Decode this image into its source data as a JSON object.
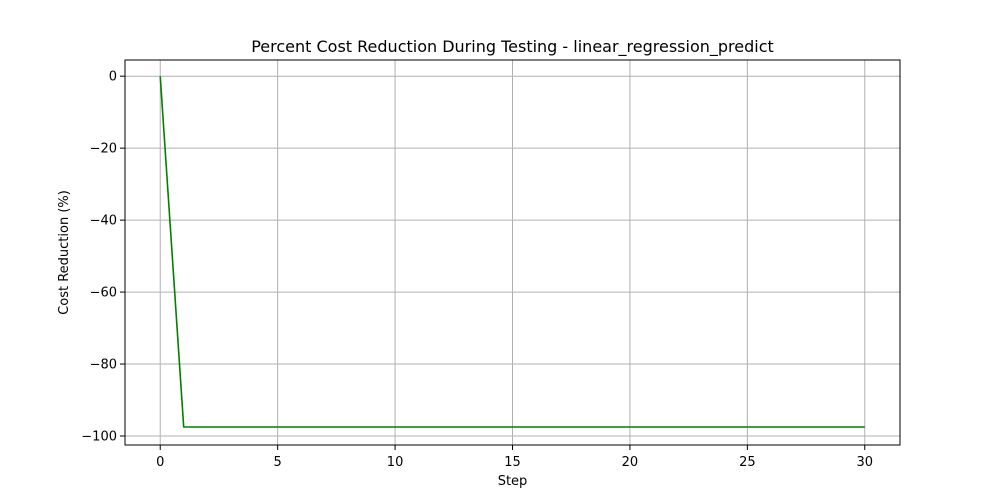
{
  "chart_data": {
    "type": "line",
    "title": "Percent Cost Reduction During Testing - linear_regression_predict",
    "xlabel": "Step",
    "ylabel": "Cost Reduction (%)",
    "xlim": [
      -1.5,
      31.5
    ],
    "ylim": [
      -102.5,
      4.5
    ],
    "x_ticks": [
      0,
      5,
      10,
      15,
      20,
      25,
      30
    ],
    "y_ticks": [
      0,
      -20,
      -40,
      -60,
      -80,
      -100
    ],
    "x_tick_labels": [
      "0",
      "5",
      "10",
      "15",
      "20",
      "25",
      "30"
    ],
    "y_tick_labels": [
      "0",
      "−20",
      "−40",
      "−60",
      "−80",
      "−100"
    ],
    "grid": true,
    "legend": "none",
    "series": [
      {
        "color": "#008000",
        "x": [
          0,
          1,
          2,
          3,
          4,
          5,
          6,
          7,
          8,
          9,
          10,
          11,
          12,
          13,
          14,
          15,
          16,
          17,
          18,
          19,
          20,
          21,
          22,
          23,
          24,
          25,
          26,
          27,
          28,
          29,
          30
        ],
        "y": [
          0,
          -97.5,
          -97.5,
          -97.5,
          -97.5,
          -97.5,
          -97.5,
          -97.5,
          -97.5,
          -97.5,
          -97.5,
          -97.5,
          -97.5,
          -97.5,
          -97.5,
          -97.5,
          -97.5,
          -97.5,
          -97.5,
          -97.5,
          -97.5,
          -97.5,
          -97.5,
          -97.5,
          -97.5,
          -97.5,
          -97.5,
          -97.5,
          -97.5,
          -97.5,
          -97.5
        ]
      }
    ]
  }
}
